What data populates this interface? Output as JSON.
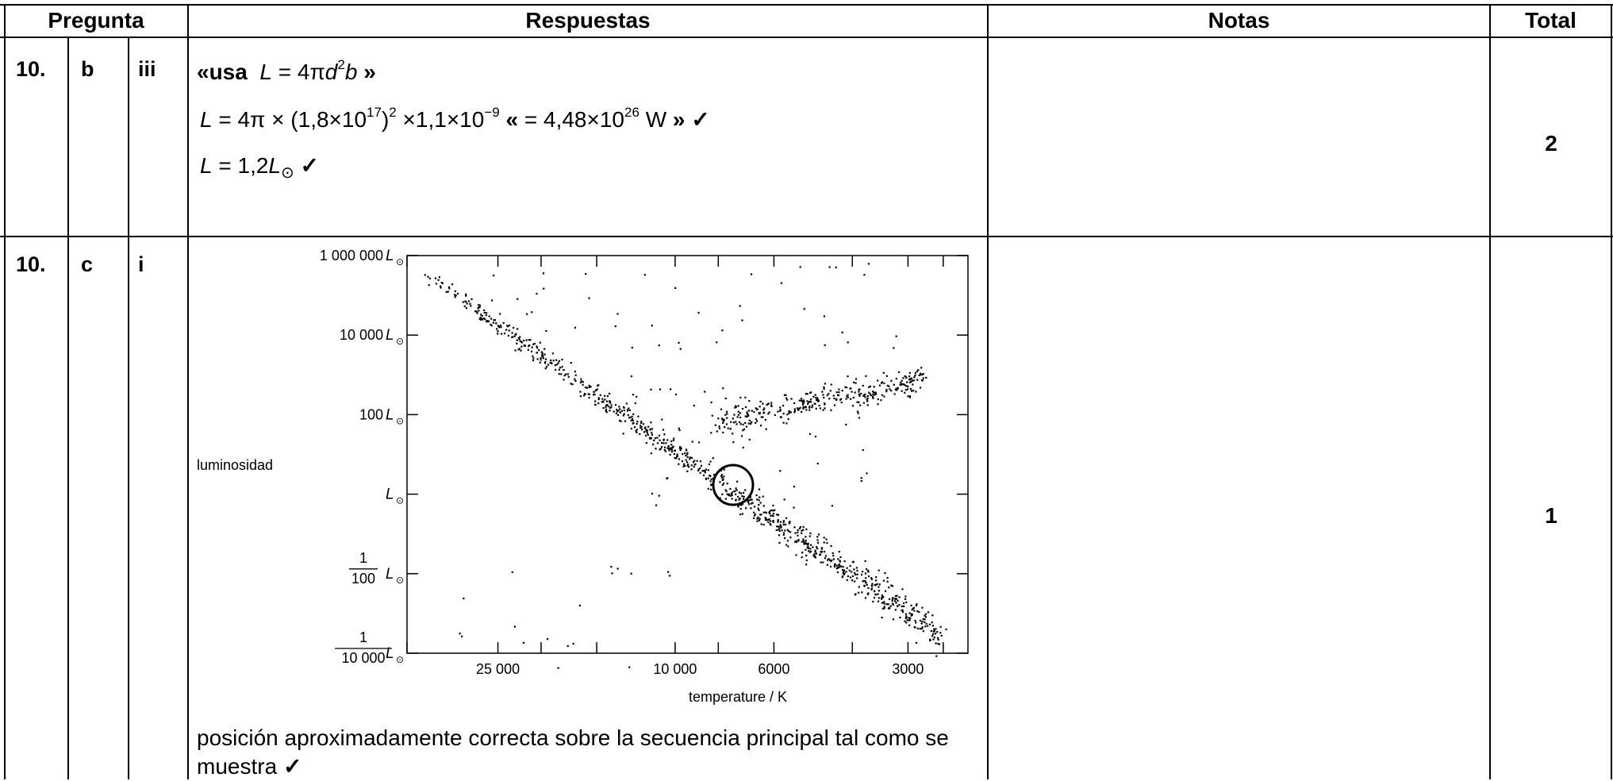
{
  "header": {
    "pregunta": "Pregunta",
    "respuestas": "Respuestas",
    "notas": "Notas",
    "total": "Total"
  },
  "rows": [
    {
      "num": "10.",
      "letter": "b",
      "roman": "iii",
      "line1_open": "«usa",
      "line1_close": "»",
      "line2_num": "(1,8×10",
      "line2_exp": "17",
      "line2_rest": "×1,1×10",
      "line2_exp2": "−9",
      "line2_result_open": "«",
      "line2_result": "= 4,48×10",
      "line2_result_exp": "26",
      "line2_unit": "W",
      "line2_result_close": "»",
      "line3": "= 1,2",
      "check": "✓",
      "total": "2"
    },
    {
      "num": "10.",
      "letter": "c",
      "roman": "i",
      "answer": "posición aproximadamente correcta sobre la secuencia principal tal como se muestra",
      "check": "✓",
      "total": "1"
    }
  ],
  "chart_data": {
    "type": "scatter",
    "ylabel": "luminosidad",
    "xlabel": "temperature / K",
    "xscale": "log-reversed",
    "yscale": "log",
    "x_ticks": [
      "25 000",
      "10 000",
      "6000",
      "3000"
    ],
    "y_ticks": [
      {
        "coef": "1 000 000"
      },
      {
        "coef": "10 000"
      },
      {
        "coef": "100"
      },
      {
        "coef": ""
      },
      {
        "frac_num": "1",
        "frac_den": "100"
      },
      {
        "frac_num": "1",
        "frac_den": "10 000"
      }
    ],
    "y_unit_symbol": "L",
    "marked_star": {
      "temperature": 6000,
      "luminosity": 1,
      "marker": "circle"
    }
  }
}
